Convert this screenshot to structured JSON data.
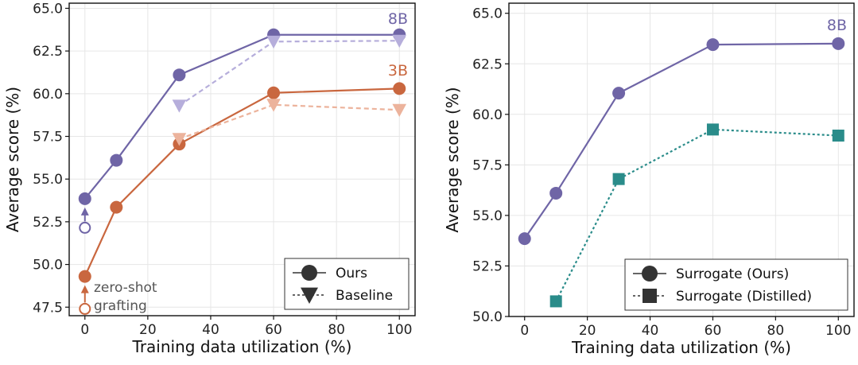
{
  "chart_data": [
    {
      "type": "line",
      "xlabel": "Training data utilization (%)",
      "ylabel": "Average score (%)",
      "xlim": [
        -5,
        105
      ],
      "ylim": [
        47,
        65.3
      ],
      "xticks": [
        0,
        20,
        40,
        60,
        80,
        100
      ],
      "yticks": [
        47.5,
        50.0,
        52.5,
        55.0,
        57.5,
        60.0,
        62.5,
        65.0
      ],
      "grid": true,
      "legend_position": "bottom-right",
      "legend": [
        {
          "label": "Ours",
          "marker": "circle",
          "line": "solid"
        },
        {
          "label": "Baseline",
          "marker": "triangle-down",
          "line": "dotted"
        }
      ],
      "series": [
        {
          "name": "Ours 8B",
          "color": "#6f65a6",
          "line": "solid",
          "marker": "circle",
          "x": [
            0,
            10,
            30,
            60,
            100
          ],
          "y": [
            53.85,
            56.1,
            61.1,
            63.45,
            63.45
          ]
        },
        {
          "name": "Baseline 8B",
          "color": "#b6aedb",
          "line": "dashed",
          "marker": "triangle-down",
          "x": [
            30,
            60,
            100
          ],
          "y": [
            59.3,
            63.05,
            63.1
          ]
        },
        {
          "name": "Ours 3B",
          "color": "#c9673f",
          "line": "solid",
          "marker": "circle",
          "x": [
            0,
            10,
            30,
            60,
            100
          ],
          "y": [
            49.3,
            53.35,
            57.05,
            60.05,
            60.3
          ]
        },
        {
          "name": "Baseline 3B",
          "color": "#ecb39c",
          "line": "dashed",
          "marker": "triangle-down",
          "x": [
            30,
            60,
            100
          ],
          "y": [
            57.35,
            59.35,
            59.05
          ]
        }
      ],
      "zero_shot_points": [
        {
          "series": "8B",
          "color": "#6f65a6",
          "x": 0,
          "y": 52.15
        },
        {
          "series": "3B",
          "color": "#c9673f",
          "x": 0,
          "y": 47.4
        }
      ],
      "annotations": {
        "label_8b": "8B",
        "label_3b": "3B",
        "zero_shot_line1": "zero-shot",
        "zero_shot_line2": "grafting"
      }
    },
    {
      "type": "line",
      "xlabel": "Training data utilization (%)",
      "ylabel": "Average score (%)",
      "xlim": [
        -5,
        105
      ],
      "ylim": [
        50,
        65.5
      ],
      "xticks": [
        0,
        20,
        40,
        60,
        80,
        100
      ],
      "yticks": [
        50.0,
        52.5,
        55.0,
        57.5,
        60.0,
        62.5,
        65.0
      ],
      "grid": true,
      "legend_position": "bottom-right",
      "legend": [
        {
          "label": "Surrogate (Ours)",
          "marker": "circle",
          "line": "solid"
        },
        {
          "label": "Surrogate (Distilled)",
          "marker": "square",
          "line": "dotted"
        }
      ],
      "series": [
        {
          "name": "Surrogate (Ours)",
          "color": "#6f65a6",
          "line": "solid",
          "marker": "circle",
          "x": [
            0,
            10,
            30,
            60,
            100
          ],
          "y": [
            53.85,
            56.1,
            61.05,
            63.45,
            63.5
          ]
        },
        {
          "name": "Surrogate (Distilled)",
          "color": "#2a8c8a",
          "line": "dotted",
          "marker": "square",
          "x": [
            10,
            30,
            60,
            100
          ],
          "y": [
            50.75,
            56.8,
            59.25,
            58.95
          ]
        }
      ],
      "annotations": {
        "label_8b": "8B"
      }
    }
  ]
}
